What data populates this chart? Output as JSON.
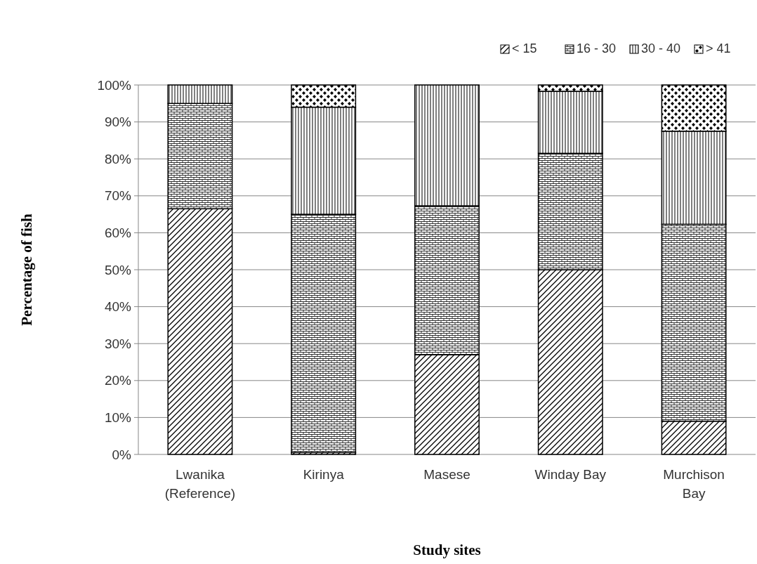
{
  "chart_data": {
    "type": "bar",
    "stacked": true,
    "xlabel": "Study sites",
    "ylabel": "Percentage of fish",
    "categories": [
      "Lwanika\n(Reference)",
      "Kirinya",
      "Masese",
      "Winday Bay",
      "Murchison\nBay"
    ],
    "series": [
      {
        "name": "< 15",
        "color": "#000000",
        "values": [
          66.5,
          0.5,
          27,
          50,
          9
        ]
      },
      {
        "name": "16 - 30",
        "color": "#000000",
        "values": [
          28.5,
          64.5,
          40.3,
          31.5,
          53.3
        ]
      },
      {
        "name": "30 - 40",
        "color": "#000000",
        "values": [
          5,
          29,
          32.7,
          16.8,
          25.2
        ]
      },
      {
        "name": "> 41",
        "color": "#000000",
        "values": [
          0,
          6,
          0,
          1.7,
          12.5
        ]
      }
    ],
    "ylim": [
      0,
      100
    ],
    "yticks": [
      {
        "value": 0,
        "label": "0%"
      },
      {
        "value": 10,
        "label": "10%"
      },
      {
        "value": 20,
        "label": "20%"
      },
      {
        "value": 30,
        "label": "30%"
      },
      {
        "value": 40,
        "label": "40%"
      },
      {
        "value": 50,
        "label": "50%"
      },
      {
        "value": 60,
        "label": "60%"
      },
      {
        "value": 70,
        "label": "70%"
      },
      {
        "value": 80,
        "label": "80%"
      },
      {
        "value": 90,
        "label": "90%"
      },
      {
        "value": 100,
        "label": "100%"
      }
    ],
    "grid": "y",
    "legend": "top right"
  }
}
